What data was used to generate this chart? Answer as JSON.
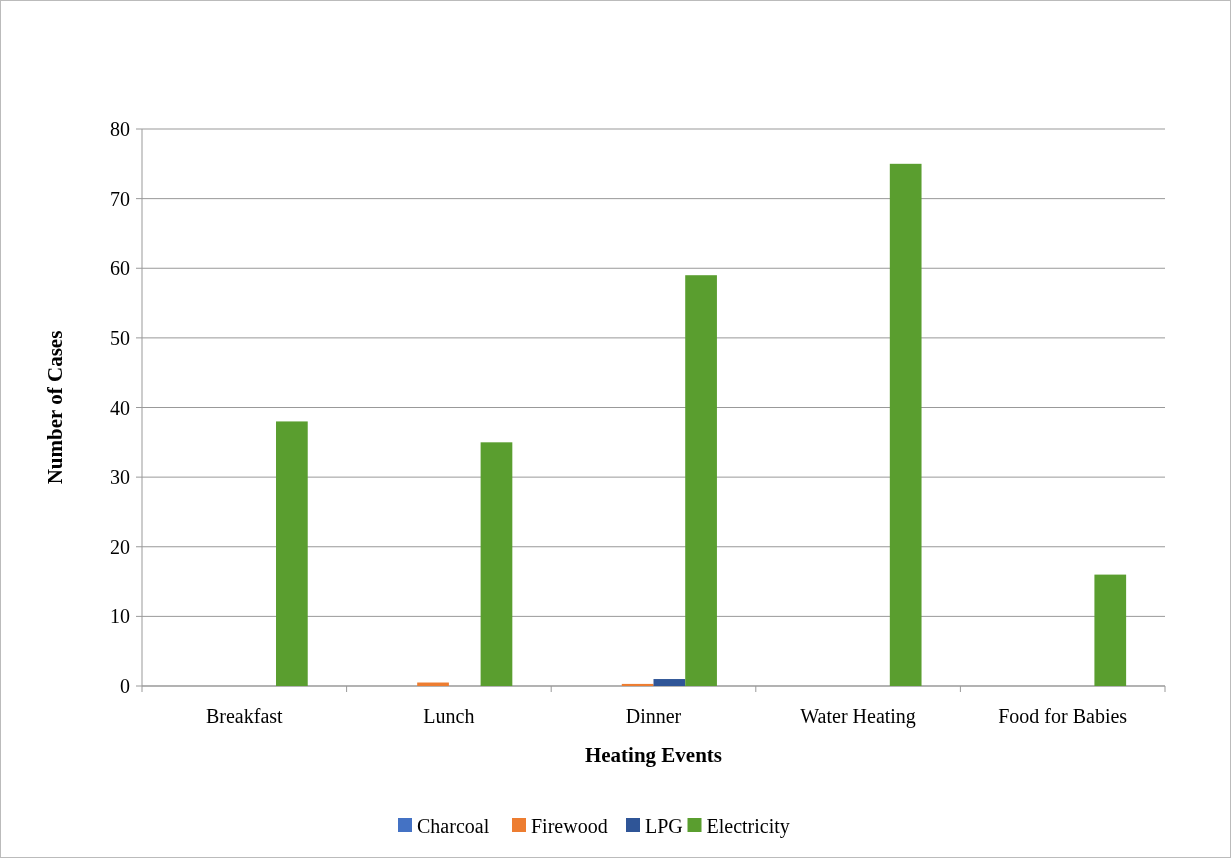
{
  "chart_data": {
    "type": "bar",
    "xlabel": "Heating Events",
    "ylabel": "Number of Cases",
    "categories": [
      "Breakfast",
      "Lunch",
      "Dinner",
      "Water Heating",
      "Food for Babies"
    ],
    "series": [
      {
        "name": "Charcoal",
        "color": "#4472c4",
        "values": [
          0,
          0,
          0,
          0,
          0
        ]
      },
      {
        "name": "Firewood",
        "color": "#ed7d31",
        "values": [
          0,
          0.5,
          0.3,
          0,
          0
        ]
      },
      {
        "name": "LPG",
        "color": "#2f5597",
        "values": [
          0,
          0,
          1,
          0,
          0
        ]
      },
      {
        "name": "Electricity",
        "color": "#5a9e2f",
        "values": [
          38,
          35,
          59,
          75,
          16
        ]
      }
    ],
    "ylim": [
      0,
      80
    ],
    "yticks": [
      0,
      10,
      20,
      30,
      40,
      50,
      60,
      70,
      80
    ],
    "grid": "y",
    "legend": "bottom"
  }
}
